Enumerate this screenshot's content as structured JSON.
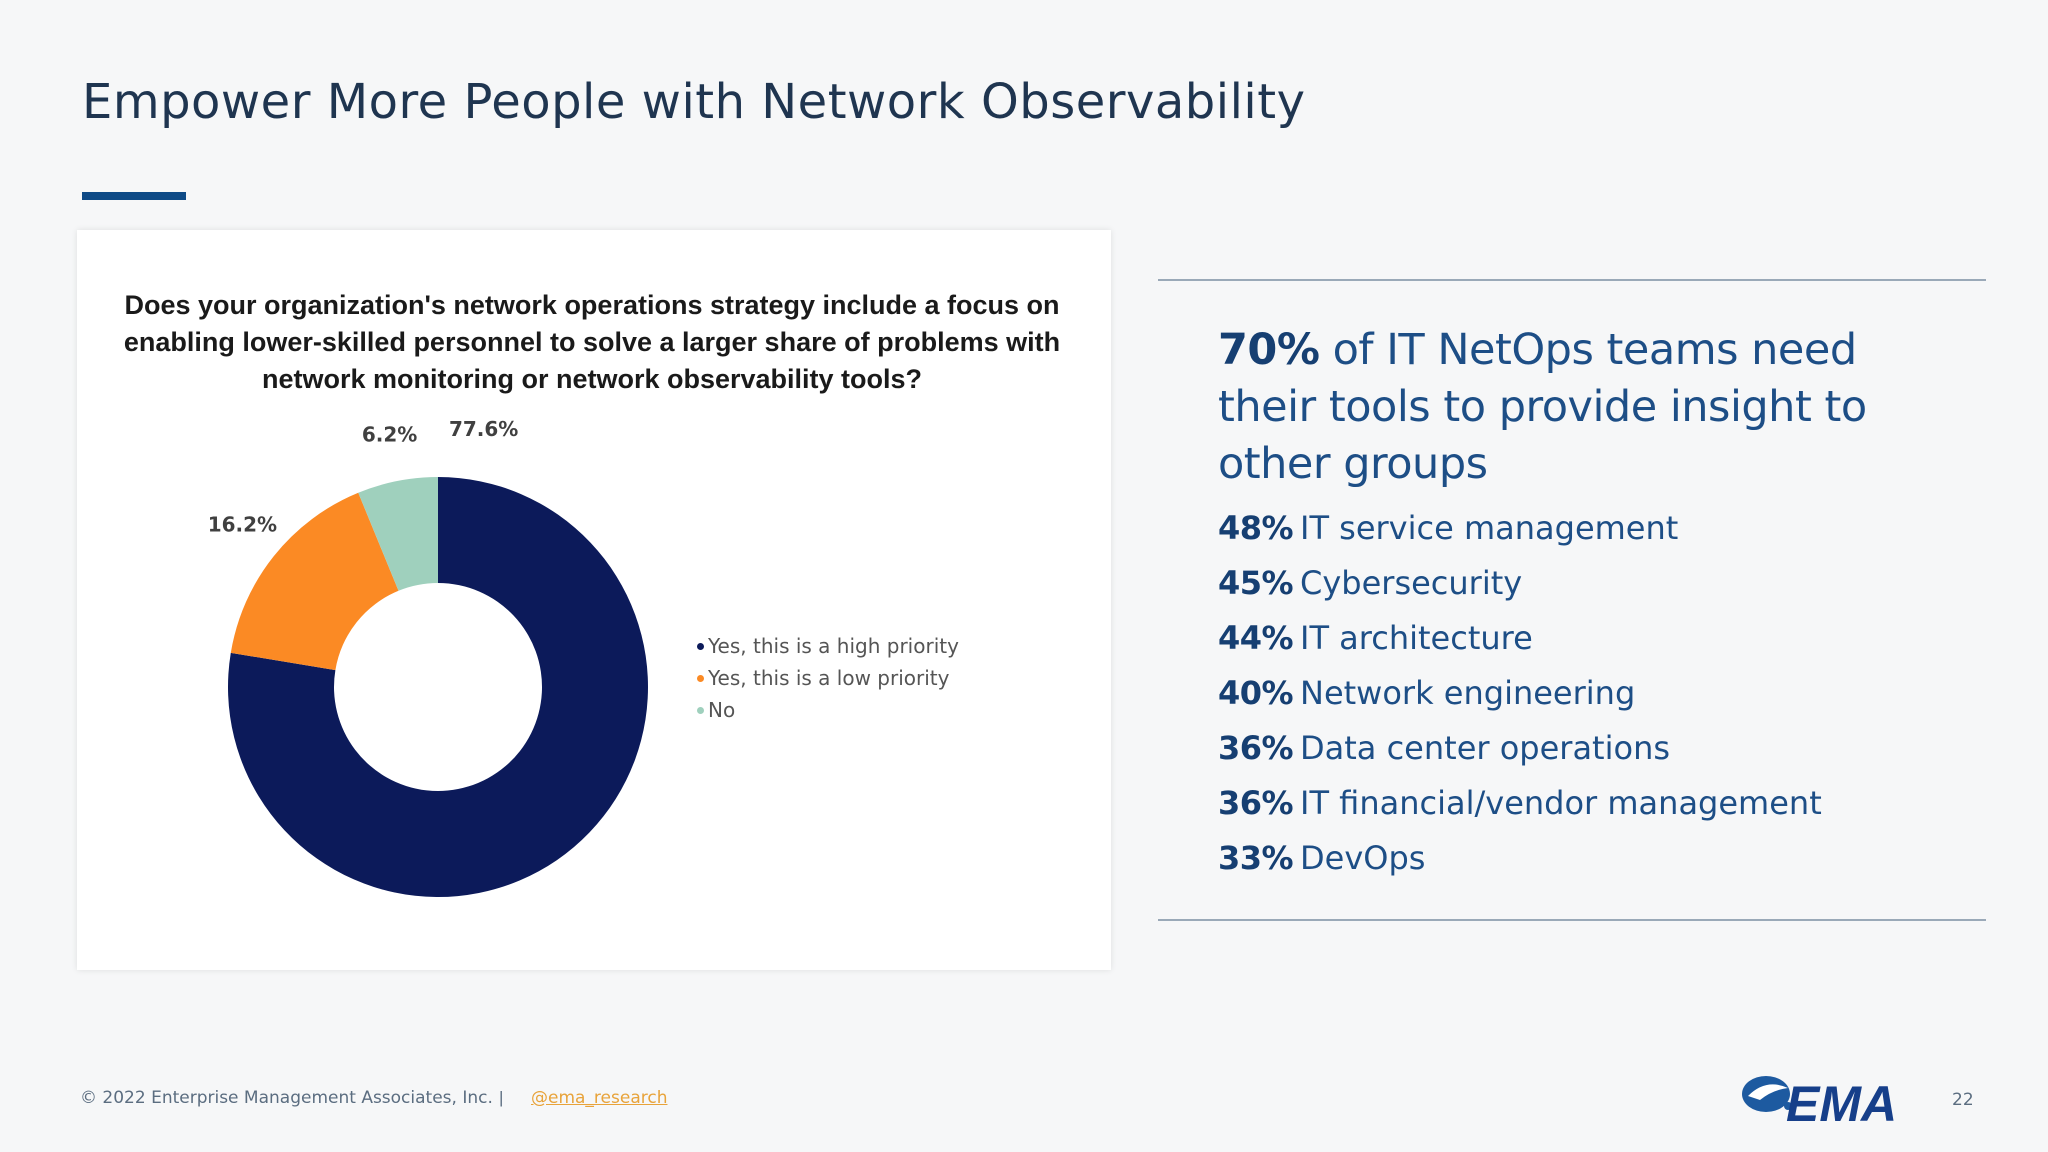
{
  "slide": {
    "title": "Empower More People with Network Observability",
    "page_number": "22"
  },
  "chart_data": {
    "type": "pie",
    "subtype": "donut",
    "title": "Does your organization's network operations strategy include a focus on enabling lower-skilled personnel to solve a larger share of problems with network monitoring or network observability tools?",
    "categories": [
      "Yes, this is a high priority",
      "Yes, this is a low priority",
      "No"
    ],
    "values": [
      77.6,
      16.2,
      6.2
    ],
    "data_labels": [
      "77.6%",
      "16.2%",
      "6.2%"
    ],
    "colors": [
      "#0c1a5a",
      "#fb8a24",
      "#9fd0bd"
    ],
    "legend": "right"
  },
  "insights": {
    "headline_pct": "70%",
    "headline_text": " of IT NetOps teams need their tools to provide insight to other groups",
    "items": [
      {
        "pct": "48%",
        "label": "IT service management"
      },
      {
        "pct": "45%",
        "label": "Cybersecurity"
      },
      {
        "pct": "44%",
        "label": "IT architecture"
      },
      {
        "pct": "40%",
        "label": "Network engineering"
      },
      {
        "pct": "36%",
        "label": "Data center operations"
      },
      {
        "pct": "36%",
        "label": "IT financial/vendor management"
      },
      {
        "pct": "33%",
        "label": "DevOps"
      }
    ]
  },
  "footer": {
    "copyright": "© 2022 Enterprise Management Associates, Inc.",
    "separator": "|",
    "link": "@ema_research",
    "logo_text": "EMA"
  }
}
